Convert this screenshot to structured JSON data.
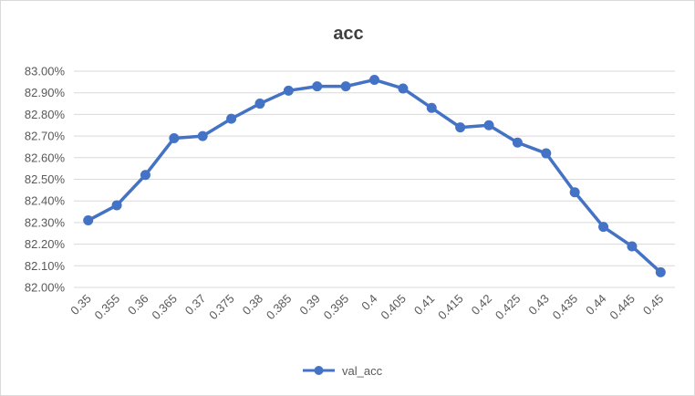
{
  "chart_data": {
    "type": "line",
    "title": "acc",
    "xlabel": "",
    "ylabel": "",
    "categories": [
      "0.35",
      "0.355",
      "0.36",
      "0.365",
      "0.37",
      "0.375",
      "0.38",
      "0.385",
      "0.39",
      "0.395",
      "0.4",
      "0.405",
      "0.41",
      "0.415",
      "0.42",
      "0.425",
      "0.43",
      "0.435",
      "0.44",
      "0.445",
      "0.45"
    ],
    "series": [
      {
        "name": "val_acc",
        "color": "#4472c4",
        "values": [
          82.31,
          82.38,
          82.52,
          82.69,
          82.7,
          82.78,
          82.85,
          82.91,
          82.93,
          82.93,
          82.96,
          82.92,
          82.83,
          82.74,
          82.75,
          82.67,
          82.62,
          82.44,
          82.28,
          82.19,
          82.07
        ]
      }
    ],
    "ylim": [
      82.0,
      83.0
    ],
    "yticks": [
      "82.00%",
      "82.10%",
      "82.20%",
      "82.30%",
      "82.40%",
      "82.50%",
      "82.60%",
      "82.70%",
      "82.80%",
      "82.90%",
      "83.00%"
    ],
    "grid": true,
    "legend_position": "bottom",
    "colors": {
      "gridline": "#d9d9d9",
      "text": "#595959",
      "title": "#404040"
    }
  }
}
